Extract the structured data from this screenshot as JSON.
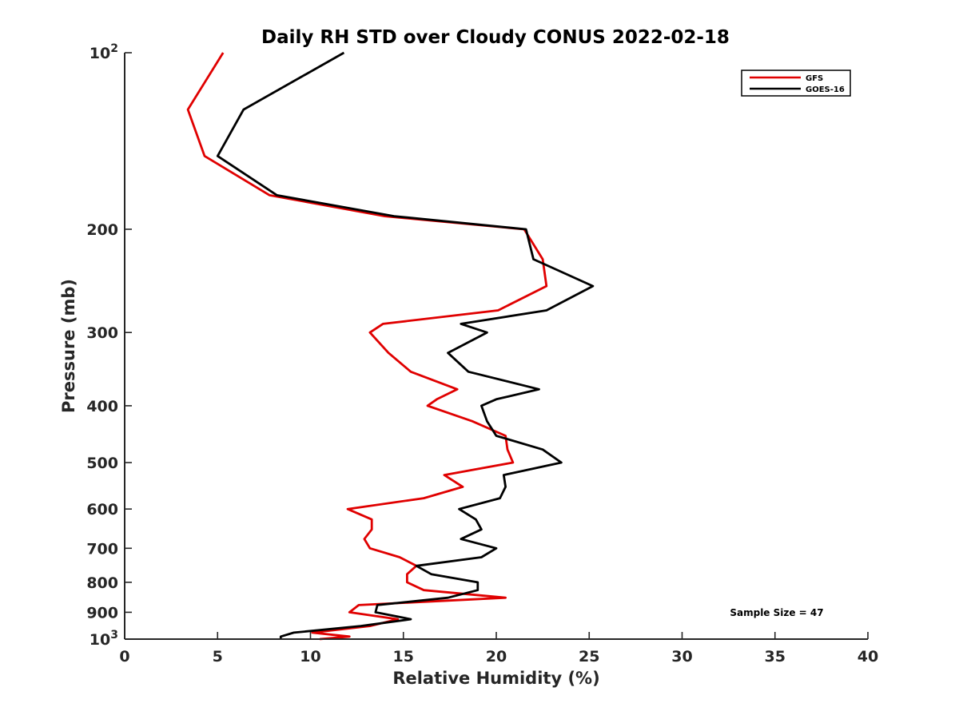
{
  "chart_data": {
    "type": "line",
    "title": "Daily RH STD over Cloudy CONUS 2022-02-18",
    "xlabel": "Relative Humidity (%)",
    "ylabel": "Pressure (mb)",
    "xlim": [
      0,
      40
    ],
    "ylim": [
      100,
      1000
    ],
    "y_scale": "log",
    "y_reversed": true,
    "grid": false,
    "legend_position": "top-right",
    "x_ticks": [
      0,
      5,
      10,
      15,
      20,
      25,
      30,
      35,
      40
    ],
    "x_tick_labels": [
      "0",
      "5",
      "10",
      "15",
      "20",
      "25",
      "30",
      "35",
      "40"
    ],
    "y_ticks": [
      100,
      200,
      300,
      400,
      500,
      600,
      700,
      800,
      900,
      1000
    ],
    "y_tick_labels": [
      {
        "base": "10",
        "sup": "2"
      },
      {
        "base": "200",
        "sup": ""
      },
      {
        "base": "300",
        "sup": ""
      },
      {
        "base": "400",
        "sup": ""
      },
      {
        "base": "500",
        "sup": ""
      },
      {
        "base": "600",
        "sup": ""
      },
      {
        "base": "700",
        "sup": ""
      },
      {
        "base": "800",
        "sup": ""
      },
      {
        "base": "900",
        "sup": ""
      },
      {
        "base": "10",
        "sup": "3"
      }
    ],
    "annotation": "Sample Size = 47",
    "series": [
      {
        "name": "GFS",
        "color": "#e00000",
        "points": [
          [
            5.3,
            100
          ],
          [
            3.4,
            125
          ],
          [
            4.3,
            150
          ],
          [
            7.8,
            175
          ],
          [
            14.0,
            190
          ],
          [
            21.5,
            200
          ],
          [
            22.5,
            225
          ],
          [
            22.7,
            250
          ],
          [
            20.1,
            275
          ],
          [
            13.9,
            290
          ],
          [
            13.2,
            300
          ],
          [
            14.2,
            325
          ],
          [
            15.4,
            350
          ],
          [
            17.9,
            375
          ],
          [
            16.8,
            390
          ],
          [
            16.3,
            400
          ],
          [
            18.7,
            425
          ],
          [
            20.5,
            450
          ],
          [
            20.6,
            475
          ],
          [
            20.9,
            500
          ],
          [
            17.2,
            525
          ],
          [
            18.2,
            550
          ],
          [
            16.1,
            575
          ],
          [
            12.0,
            600
          ],
          [
            13.3,
            625
          ],
          [
            13.3,
            650
          ],
          [
            12.9,
            675
          ],
          [
            13.2,
            700
          ],
          [
            14.8,
            725
          ],
          [
            15.7,
            750
          ],
          [
            15.2,
            775
          ],
          [
            15.2,
            800
          ],
          [
            16.1,
            825
          ],
          [
            20.5,
            850
          ],
          [
            12.6,
            875
          ],
          [
            12.1,
            900
          ],
          [
            14.7,
            925
          ],
          [
            13.2,
            950
          ],
          [
            10.1,
            975
          ],
          [
            12.1,
            990
          ],
          [
            10.5,
            1000
          ]
        ]
      },
      {
        "name": "GOES-16",
        "color": "#000000",
        "points": [
          [
            11.8,
            100
          ],
          [
            6.4,
            125
          ],
          [
            5.0,
            150
          ],
          [
            8.2,
            175
          ],
          [
            14.5,
            190
          ],
          [
            21.6,
            200
          ],
          [
            22.0,
            225
          ],
          [
            25.2,
            250
          ],
          [
            22.7,
            275
          ],
          [
            18.1,
            290
          ],
          [
            19.5,
            300
          ],
          [
            17.4,
            325
          ],
          [
            18.5,
            350
          ],
          [
            22.3,
            375
          ],
          [
            20.0,
            390
          ],
          [
            19.2,
            400
          ],
          [
            19.5,
            425
          ],
          [
            20.0,
            450
          ],
          [
            22.5,
            475
          ],
          [
            23.5,
            500
          ],
          [
            20.4,
            525
          ],
          [
            20.5,
            550
          ],
          [
            20.2,
            575
          ],
          [
            18.0,
            600
          ],
          [
            18.9,
            625
          ],
          [
            19.2,
            650
          ],
          [
            18.1,
            675
          ],
          [
            20.0,
            700
          ],
          [
            19.2,
            725
          ],
          [
            15.7,
            750
          ],
          [
            16.5,
            775
          ],
          [
            19.0,
            800
          ],
          [
            19.0,
            825
          ],
          [
            17.4,
            850
          ],
          [
            13.6,
            875
          ],
          [
            13.5,
            900
          ],
          [
            15.4,
            925
          ],
          [
            12.7,
            950
          ],
          [
            9.1,
            975
          ],
          [
            8.4,
            990
          ],
          [
            8.4,
            1000
          ]
        ]
      }
    ]
  }
}
